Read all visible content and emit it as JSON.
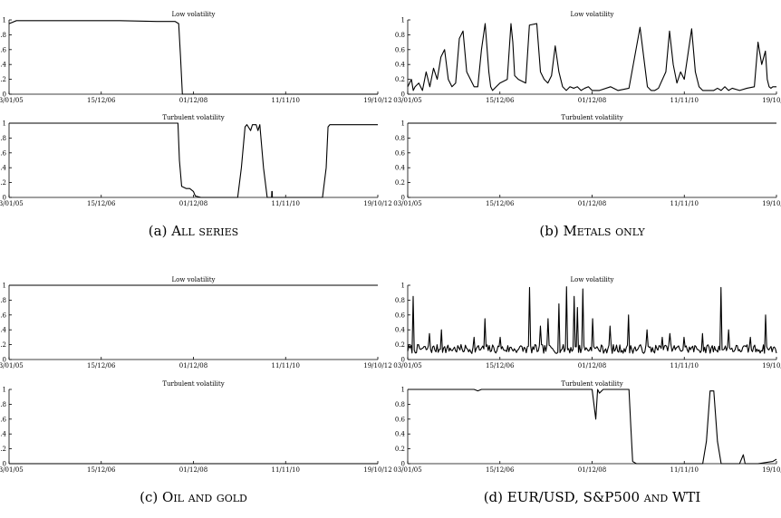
{
  "x_ticks": [
    "03/01/05",
    "15/12/06",
    "01/12/08",
    "11/11/10",
    "19/10/12"
  ],
  "y_ticks": [
    "0",
    "0.2",
    "0.4",
    "0.6",
    "0.8",
    "1"
  ],
  "panels": [
    {
      "id": "a",
      "caption": {
        "prefix": "(a) ",
        "text": "All series"
      },
      "chart_data": [
        {
          "type": "line",
          "title": "Low volatility",
          "ylim": [
            0,
            1
          ],
          "x": [
            0,
            0.02,
            0.05,
            0.1,
            0.2,
            0.3,
            0.4,
            0.45,
            0.46,
            0.465,
            0.47,
            0.5,
            0.6,
            0.7,
            0.8,
            0.9,
            1.0
          ],
          "y": [
            0.95,
            0.99,
            0.99,
            0.99,
            0.99,
            0.99,
            0.98,
            0.98,
            0.95,
            0.5,
            0.0,
            0,
            0,
            0,
            0,
            0,
            0
          ]
        },
        {
          "type": "line",
          "title": "Turbulent volatility",
          "ylim": [
            0,
            1
          ],
          "x": [
            0,
            0.1,
            0.2,
            0.3,
            0.43,
            0.458,
            0.462,
            0.468,
            0.48,
            0.49,
            0.5,
            0.505,
            0.52,
            0.6,
            0.62,
            0.63,
            0.64,
            0.645,
            0.655,
            0.66,
            0.67,
            0.675,
            0.68,
            0.69,
            0.7,
            0.712,
            0.7125,
            0.7135,
            0.714,
            0.72,
            0.8,
            0.85,
            0.86,
            0.865,
            0.87,
            0.88,
            1.0
          ],
          "y": [
            1,
            1,
            1,
            1,
            1,
            1,
            0.5,
            0.15,
            0.12,
            0.12,
            0.08,
            0.02,
            0,
            0,
            0,
            0.4,
            0.95,
            0.98,
            0.9,
            0.98,
            0.98,
            0.9,
            0.98,
            0.4,
            0,
            0,
            0.08,
            0.08,
            0,
            0,
            0,
            0,
            0.4,
            0.95,
            0.98,
            0.98,
            0.98
          ]
        }
      ]
    },
    {
      "id": "b",
      "caption": {
        "prefix": "(b) ",
        "text": "Metals only"
      },
      "chart_data": [
        {
          "type": "line",
          "title": "Low volatility",
          "ylim": [
            0,
            1
          ],
          "x": [
            0,
            0.01,
            0.015,
            0.02,
            0.03,
            0.04,
            0.05,
            0.06,
            0.07,
            0.08,
            0.09,
            0.1,
            0.11,
            0.12,
            0.13,
            0.14,
            0.15,
            0.16,
            0.18,
            0.19,
            0.2,
            0.21,
            0.22,
            0.225,
            0.23,
            0.24,
            0.25,
            0.27,
            0.28,
            0.285,
            0.29,
            0.3,
            0.32,
            0.33,
            0.35,
            0.36,
            0.37,
            0.38,
            0.39,
            0.4,
            0.41,
            0.42,
            0.43,
            0.44,
            0.45,
            0.46,
            0.47,
            0.48,
            0.49,
            0.5,
            0.52,
            0.55,
            0.57,
            0.6,
            0.63,
            0.64,
            0.65,
            0.66,
            0.67,
            0.68,
            0.7,
            0.71,
            0.72,
            0.73,
            0.74,
            0.75,
            0.77,
            0.78,
            0.79,
            0.8,
            0.81,
            0.83,
            0.84,
            0.85,
            0.86,
            0.87,
            0.88,
            0.9,
            0.92,
            0.94,
            0.95,
            0.96,
            0.97,
            0.975,
            0.98,
            0.985,
            0.99,
            1.0
          ],
          "y": [
            0.1,
            0.2,
            0.05,
            0.1,
            0.15,
            0.05,
            0.3,
            0.1,
            0.35,
            0.2,
            0.5,
            0.6,
            0.2,
            0.1,
            0.15,
            0.75,
            0.85,
            0.3,
            0.1,
            0.1,
            0.6,
            0.95,
            0.3,
            0.1,
            0.05,
            0.1,
            0.15,
            0.2,
            0.95,
            0.7,
            0.25,
            0.2,
            0.15,
            0.93,
            0.95,
            0.3,
            0.2,
            0.15,
            0.25,
            0.65,
            0.3,
            0.1,
            0.05,
            0.1,
            0.08,
            0.1,
            0.05,
            0.08,
            0.1,
            0.05,
            0.05,
            0.1,
            0.05,
            0.08,
            0.9,
            0.5,
            0.1,
            0.05,
            0.05,
            0.08,
            0.3,
            0.85,
            0.4,
            0.15,
            0.3,
            0.2,
            0.88,
            0.3,
            0.1,
            0.05,
            0.05,
            0.05,
            0.08,
            0.05,
            0.1,
            0.05,
            0.08,
            0.05,
            0.08,
            0.1,
            0.7,
            0.4,
            0.58,
            0.2,
            0.1,
            0.08,
            0.1,
            0.1
          ]
        },
        {
          "type": "line",
          "title": "Turbulent volatility",
          "ylim": [
            0,
            1
          ],
          "x": [
            0,
            1.0
          ],
          "y": [
            1,
            1
          ]
        }
      ]
    },
    {
      "id": "c",
      "caption": {
        "prefix": "(c) ",
        "text": "Oil and gold"
      },
      "chart_data": [
        {
          "type": "line",
          "title": "Low volatility",
          "ylim": [
            0,
            1
          ],
          "x": [
            0,
            1.0
          ],
          "y": [
            1,
            1
          ]
        },
        {
          "type": "line",
          "title": "Turbulent volatility",
          "ylim": [
            0,
            1
          ],
          "x": [
            0,
            1.0
          ],
          "y": [
            0,
            0
          ]
        }
      ]
    },
    {
      "id": "d",
      "caption": {
        "prefix": "(d) ",
        "text": "EUR/USD, S&P500 and WTI"
      },
      "chart_data": [
        {
          "type": "line",
          "title": "Low volatility",
          "ylim": [
            0,
            1
          ],
          "noise": {
            "base": 0.13,
            "amp": 0.06,
            "points": 340,
            "seed": 7
          },
          "spikes": [
            {
              "x": 0.015,
              "y": 0.85
            },
            {
              "x": 0.06,
              "y": 0.35
            },
            {
              "x": 0.09,
              "y": 0.4
            },
            {
              "x": 0.18,
              "y": 0.3
            },
            {
              "x": 0.21,
              "y": 0.55
            },
            {
              "x": 0.25,
              "y": 0.3
            },
            {
              "x": 0.33,
              "y": 0.97
            },
            {
              "x": 0.36,
              "y": 0.45
            },
            {
              "x": 0.38,
              "y": 0.55
            },
            {
              "x": 0.41,
              "y": 0.75
            },
            {
              "x": 0.43,
              "y": 0.98
            },
            {
              "x": 0.45,
              "y": 0.85
            },
            {
              "x": 0.46,
              "y": 0.7
            },
            {
              "x": 0.475,
              "y": 0.95
            },
            {
              "x": 0.5,
              "y": 0.55
            },
            {
              "x": 0.55,
              "y": 0.45
            },
            {
              "x": 0.6,
              "y": 0.6
            },
            {
              "x": 0.65,
              "y": 0.4
            },
            {
              "x": 0.69,
              "y": 0.3
            },
            {
              "x": 0.71,
              "y": 0.35
            },
            {
              "x": 0.75,
              "y": 0.3
            },
            {
              "x": 0.8,
              "y": 0.35
            },
            {
              "x": 0.85,
              "y": 0.97
            },
            {
              "x": 0.87,
              "y": 0.4
            },
            {
              "x": 0.93,
              "y": 0.3
            },
            {
              "x": 0.97,
              "y": 0.6
            }
          ]
        },
        {
          "type": "line",
          "title": "Turbulent volatility",
          "ylim": [
            0,
            1
          ],
          "x": [
            0,
            0.18,
            0.19,
            0.2,
            0.3,
            0.4,
            0.5,
            0.51,
            0.515,
            0.52,
            0.53,
            0.54,
            0.55,
            0.56,
            0.57,
            0.6,
            0.605,
            0.61,
            0.62,
            0.65,
            0.7,
            0.8,
            0.81,
            0.82,
            0.83,
            0.84,
            0.85,
            0.86,
            0.87,
            0.88,
            0.9,
            0.91,
            0.915,
            0.92,
            0.93,
            0.95,
            0.99,
            1.0
          ],
          "y": [
            1,
            1,
            0.98,
            1,
            1,
            1,
            1,
            0.6,
            1,
            0.95,
            1,
            1,
            1,
            1,
            1,
            1,
            0.5,
            0.03,
            0,
            0,
            0,
            0,
            0.3,
            0.98,
            0.98,
            0.3,
            0,
            0,
            0,
            0,
            0,
            0.12,
            0,
            0,
            0,
            0,
            0.03,
            0.06
          ]
        }
      ]
    }
  ]
}
